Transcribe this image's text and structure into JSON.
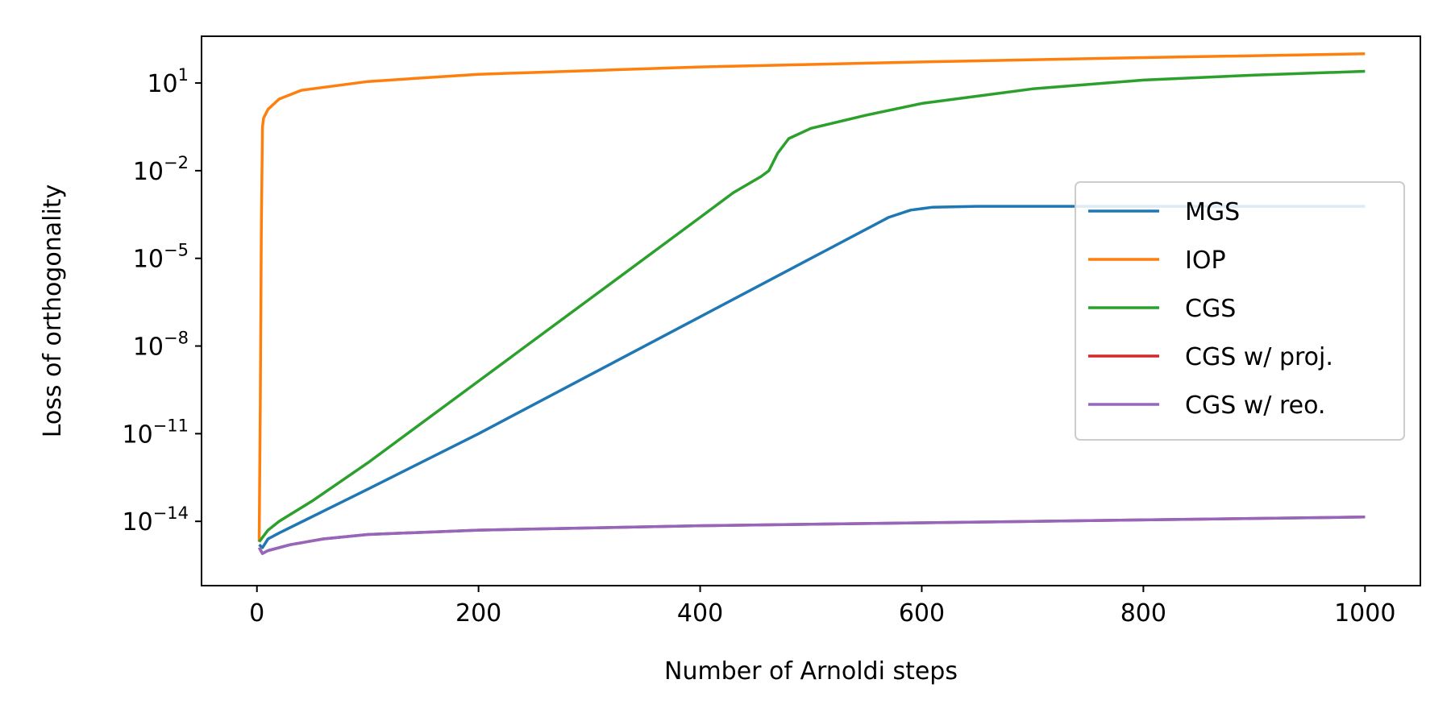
{
  "chart_data": {
    "type": "line",
    "xlabel": "Number of Arnoldi steps",
    "ylabel": "Loss of orthogonality",
    "xlim": [
      -50,
      1050
    ],
    "ylim_log10": [
      -16.2,
      2.6
    ],
    "yscale": "log",
    "x_ticks": [
      0,
      200,
      400,
      600,
      800,
      1000
    ],
    "x_tick_labels": [
      "0",
      "200",
      "400",
      "600",
      "800",
      "1000"
    ],
    "y_ticks_log10": [
      1,
      -2,
      -5,
      -8,
      -11,
      -14
    ],
    "y_tick_base": "10",
    "y_tick_exponents": [
      "1",
      "−2",
      "−5",
      "−8",
      "−11",
      "−14"
    ],
    "grid": false,
    "legend_position": "center-right",
    "series": [
      {
        "name": "MGS",
        "color": "#1f77b4",
        "points_log10": [
          [
            2,
            -14.8
          ],
          [
            5,
            -14.9
          ],
          [
            10,
            -14.6
          ],
          [
            20,
            -14.4
          ],
          [
            100,
            -12.9
          ],
          [
            200,
            -11.0
          ],
          [
            300,
            -9.0
          ],
          [
            400,
            -7.0
          ],
          [
            500,
            -5.0
          ],
          [
            570,
            -3.6
          ],
          [
            590,
            -3.35
          ],
          [
            610,
            -3.25
          ],
          [
            650,
            -3.22
          ],
          [
            800,
            -3.22
          ],
          [
            1000,
            -3.22
          ]
        ]
      },
      {
        "name": "IOP",
        "color": "#ff7f0e",
        "points_log10": [
          [
            2,
            -14.7
          ],
          [
            3,
            -10.0
          ],
          [
            4,
            -4.0
          ],
          [
            5,
            -0.5
          ],
          [
            6,
            -0.2
          ],
          [
            10,
            0.1
          ],
          [
            20,
            0.45
          ],
          [
            40,
            0.75
          ],
          [
            100,
            1.05
          ],
          [
            200,
            1.3
          ],
          [
            400,
            1.55
          ],
          [
            600,
            1.72
          ],
          [
            800,
            1.87
          ],
          [
            1000,
            2.0
          ]
        ]
      },
      {
        "name": "CGS",
        "color": "#2ca02c",
        "points_log10": [
          [
            2,
            -14.7
          ],
          [
            10,
            -14.3
          ],
          [
            20,
            -14.0
          ],
          [
            50,
            -13.3
          ],
          [
            100,
            -12.0
          ],
          [
            200,
            -9.2
          ],
          [
            300,
            -6.4
          ],
          [
            400,
            -3.6
          ],
          [
            430,
            -2.75
          ],
          [
            455,
            -2.2
          ],
          [
            462,
            -2.0
          ],
          [
            470,
            -1.4
          ],
          [
            480,
            -0.9
          ],
          [
            500,
            -0.55
          ],
          [
            550,
            -0.1
          ],
          [
            600,
            0.3
          ],
          [
            700,
            0.8
          ],
          [
            800,
            1.1
          ],
          [
            900,
            1.27
          ],
          [
            1000,
            1.4
          ]
        ]
      },
      {
        "name": "CGS w/ proj.",
        "color": "#d62728",
        "points_log10": [
          [
            2,
            -14.9
          ],
          [
            5,
            -15.1
          ],
          [
            10,
            -15.0
          ],
          [
            30,
            -14.8
          ],
          [
            60,
            -14.6
          ],
          [
            100,
            -14.45
          ],
          [
            200,
            -14.3
          ],
          [
            400,
            -14.15
          ],
          [
            600,
            -14.05
          ],
          [
            800,
            -13.95
          ],
          [
            1000,
            -13.85
          ]
        ]
      },
      {
        "name": "CGS w/ reo.",
        "color": "#9467bd",
        "points_log10": [
          [
            2,
            -14.9
          ],
          [
            5,
            -15.1
          ],
          [
            10,
            -15.0
          ],
          [
            30,
            -14.8
          ],
          [
            60,
            -14.6
          ],
          [
            100,
            -14.45
          ],
          [
            200,
            -14.3
          ],
          [
            400,
            -14.15
          ],
          [
            600,
            -14.05
          ],
          [
            800,
            -13.95
          ],
          [
            1000,
            -13.85
          ]
        ]
      }
    ]
  }
}
